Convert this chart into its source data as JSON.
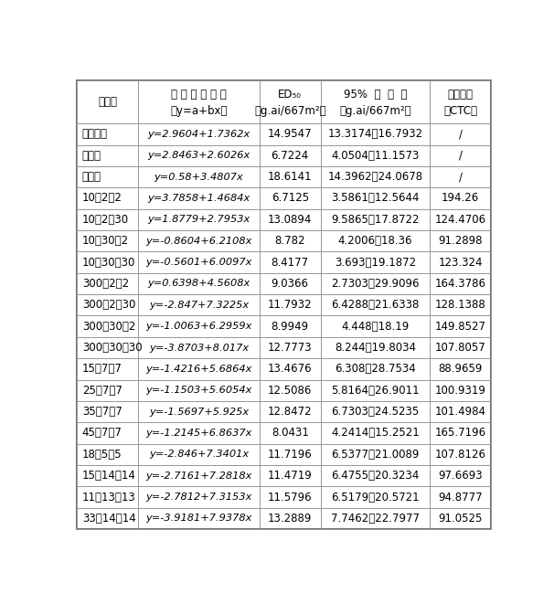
{
  "header_line1": [
    "除草剂",
    "毒 力 回 归 方 程",
    "ED₅₀",
    "95%  置  信  限",
    "共毒系数"
  ],
  "header_line2": [
    "",
    "（y=a+bx）",
    "（g.ai/667m²）",
    "（g.ai/667m²）",
    "（CTC）"
  ],
  "rows": [
    [
      "苯嗅草锐",
      "y=2.9604+1.7362x",
      "14.9547",
      "13.3174～16.7932",
      "/"
    ],
    [
      "甜菜安",
      "y=2.8463+2.6026x",
      "6.7224",
      "4.0504～11.1573",
      "/"
    ],
    [
      "甜菜宁",
      "y=0.58+3.4807x",
      "18.6141",
      "14.3962～24.0678",
      "/"
    ],
    [
      "10：2：2",
      "y=3.7858+1.4684x",
      "6.7125",
      "3.5861～12.5644",
      "194.26"
    ],
    [
      "10：2：30",
      "y=1.8779+2.7953x",
      "13.0894",
      "9.5865～17.8722",
      "124.4706"
    ],
    [
      "10：30：2",
      "y=-0.8604+6.2108x",
      "8.782",
      "4.2006～18.36",
      "91.2898"
    ],
    [
      "10：30：30",
      "y=-0.5601+6.0097x",
      "8.4177",
      "3.693～19.1872",
      "123.324"
    ],
    [
      "300：2：2",
      "y=0.6398+4.5608x",
      "9.0366",
      "2.7303～29.9096",
      "164.3786"
    ],
    [
      "300：2：30",
      "y=-2.847+7.3225x",
      "11.7932",
      "6.4288～21.6338",
      "128.1388"
    ],
    [
      "300：30：2",
      "y=-1.0063+6.2959x",
      "8.9949",
      "4.448～18.19",
      "149.8527"
    ],
    [
      "300：30：30",
      "y=-3.8703+8.017x",
      "12.7773",
      "8.244～19.8034",
      "107.8057"
    ],
    [
      "15：7：7",
      "y=-1.4216+5.6864x",
      "13.4676",
      "6.308～28.7534",
      "88.9659"
    ],
    [
      "25：7：7",
      "y=-1.1503+5.6054x",
      "12.5086",
      "5.8164～26.9011",
      "100.9319"
    ],
    [
      "35：7：7",
      "y=-1.5697+5.925x",
      "12.8472",
      "6.7303～24.5235",
      "101.4984"
    ],
    [
      "45：7：7",
      "y=-1.2145+6.8637x",
      "8.0431",
      "4.2414～15.2521",
      "165.7196"
    ],
    [
      "18：5：5",
      "y=-2.846+7.3401x",
      "11.7196",
      "6.5377～21.0089",
      "107.8126"
    ],
    [
      "15：14：14",
      "y=-2.7161+7.2818x",
      "11.4719",
      "6.4755～20.3234",
      "97.6693"
    ],
    [
      "11：13：13",
      "y=-2.7812+7.3153x",
      "11.5796",
      "6.5179～20.5721",
      "94.8777"
    ],
    [
      "33：14：14",
      "y=-3.9181+7.9378x",
      "13.2889",
      "7.7462～22.7977",
      "91.0525"
    ]
  ],
  "col_widths_ratio": [
    1.0,
    2.0,
    1.0,
    1.8,
    1.0
  ],
  "bg_color": "#ffffff",
  "grid_color": "#999999",
  "text_color": "#000000",
  "font_size": 8.5,
  "header_font_size": 8.5,
  "fig_width": 6.06,
  "fig_height": 6.61,
  "dpi": 100
}
